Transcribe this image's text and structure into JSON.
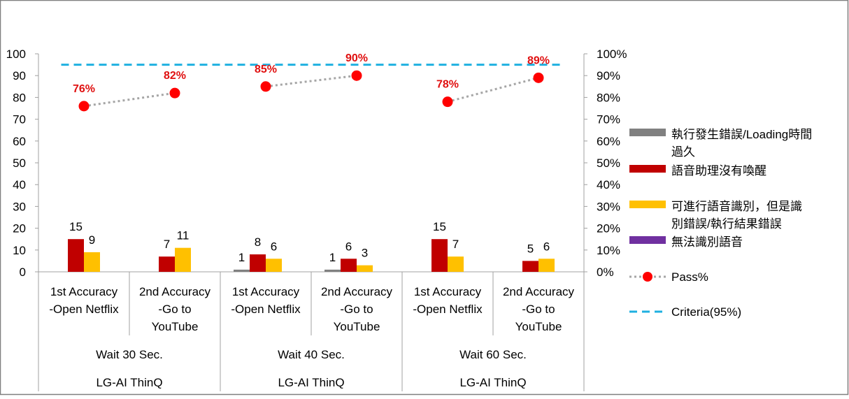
{
  "chart_data": {
    "type": "bar",
    "y_left_lim": [
      0,
      100
    ],
    "y_left_ticks": [
      "0",
      "10",
      "20",
      "30",
      "40",
      "50",
      "60",
      "70",
      "80",
      "90",
      "100"
    ],
    "y_right_ticks": [
      "0%",
      "10%",
      "20%",
      "30%",
      "40%",
      "50%",
      "60%",
      "70%",
      "80%",
      "90%",
      "100%"
    ],
    "categories": [
      [
        "1st Accuracy",
        "-Open Netflix"
      ],
      [
        "2nd Accuracy",
        "-Go to",
        "YouTube"
      ],
      [
        "1st Accuracy",
        "-Open Netflix"
      ],
      [
        "2nd Accuracy",
        "-Go to",
        "YouTube"
      ],
      [
        "1st Accuracy",
        "-Open Netflix"
      ],
      [
        "2nd Accuracy",
        "-Go to",
        "YouTube"
      ]
    ],
    "groups": [
      "Wait 30 Sec.",
      "Wait 40 Sec.",
      "Wait 60 Sec."
    ],
    "supergroups": [
      "LG-AI ThinQ",
      "LG-AI ThinQ",
      "LG-AI ThinQ"
    ],
    "series": [
      {
        "name": "執行發生錯誤/Loading時間過久",
        "name_lines": [
          "執行發生錯誤/Loading時間",
          "過久"
        ],
        "color": "#808080",
        "values": [
          0,
          0,
          1,
          1,
          0,
          0
        ]
      },
      {
        "name": "語音助理沒有喚醒",
        "name_lines": [
          "語音助理沒有喚醒"
        ],
        "color": "#c00000",
        "values": [
          15,
          7,
          8,
          6,
          15,
          5
        ]
      },
      {
        "name": "可進行語音識別，但是識別錯誤/執行結果錯誤",
        "name_lines": [
          "可進行語音識別，但是識",
          "別錯誤/執行結果錯誤"
        ],
        "color": "#ffc000",
        "values": [
          9,
          11,
          6,
          3,
          7,
          6
        ]
      },
      {
        "name": "無法識別語音",
        "name_lines": [
          "無法識別語音"
        ],
        "color": "#7030a0",
        "values": [
          0,
          0,
          0,
          0,
          0,
          0
        ]
      }
    ],
    "pass": {
      "name": "Pass%",
      "color": "#ff0000",
      "line_color": "#a6a6a6",
      "values": [
        76,
        82,
        85,
        90,
        78,
        89
      ],
      "labels": [
        "76%",
        "82%",
        "85%",
        "90%",
        "78%",
        "89%"
      ]
    },
    "criteria": {
      "name": "Criteria(95%)",
      "color": "#1fb0e0",
      "value": 95
    },
    "legend_position": "right"
  }
}
